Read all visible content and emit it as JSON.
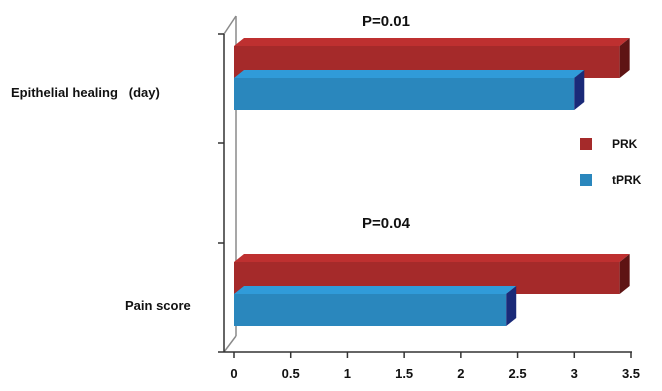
{
  "chart_data": {
    "type": "bar",
    "orientation": "horizontal",
    "style": "3d",
    "categories": [
      "Epithelial healing   (day)",
      "Pain score"
    ],
    "series": [
      {
        "name": "PRK",
        "color": "#a52a2a",
        "values": [
          3.4,
          3.4
        ]
      },
      {
        "name": "tPRK",
        "color": "#2a87bd",
        "values": [
          3.0,
          2.4
        ]
      }
    ],
    "xlim": [
      0,
      3.5
    ],
    "xticks": [
      "0",
      "0.5",
      "1",
      "1.5",
      "2",
      "2.5",
      "3",
      "3.5"
    ],
    "annotations": [
      "P=0.01",
      "P=0.04"
    ],
    "legend_position": "right",
    "grid": false,
    "title": "",
    "xlabel": "",
    "ylabel": ""
  }
}
